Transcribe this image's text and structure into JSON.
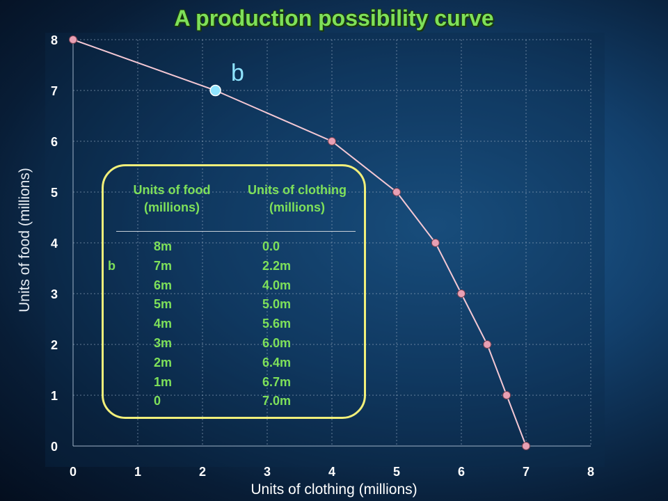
{
  "title": "A production possibility curve",
  "point_label": "b",
  "table": {
    "headers": {
      "food": [
        "Units of food",
        "(millions)"
      ],
      "clothing": [
        "Units of clothing",
        "(millions)"
      ]
    },
    "rows": [
      {
        "label": "",
        "food": "8m",
        "clothing": "0.0"
      },
      {
        "label": "b",
        "food": "7m",
        "clothing": "2.2m"
      },
      {
        "label": "",
        "food": "6m",
        "clothing": "4.0m"
      },
      {
        "label": "",
        "food": "5m",
        "clothing": "5.0m"
      },
      {
        "label": "",
        "food": "4m",
        "clothing": "5.6m"
      },
      {
        "label": "",
        "food": "3m",
        "clothing": "6.0m"
      },
      {
        "label": "",
        "food": "2m",
        "clothing": "6.4m"
      },
      {
        "label": "",
        "food": "1m",
        "clothing": "6.7m"
      },
      {
        "label": "",
        "food": "0",
        "clothing": "7.0m"
      }
    ]
  },
  "chart_data": {
    "type": "line",
    "title": "A production possibility curve",
    "xlabel": "Units of clothing (millions)",
    "ylabel": "Units of food (millions)",
    "xlim": [
      0,
      8
    ],
    "ylim": [
      0,
      8
    ],
    "xticks": [
      "0",
      "1",
      "2",
      "3",
      "4",
      "5",
      "6",
      "7",
      "8"
    ],
    "yticks": [
      "0",
      "1",
      "2",
      "3",
      "4",
      "5",
      "6",
      "7",
      "8"
    ],
    "grid": true,
    "series": [
      {
        "x": [
          0,
          2.2,
          4.0,
          5.0,
          5.6,
          6.0,
          6.4,
          6.7,
          7.0
        ],
        "y": [
          8,
          7,
          6,
          5,
          4,
          3,
          2,
          1,
          0
        ]
      }
    ],
    "highlight": {
      "label": "b",
      "x": 2.2,
      "y": 7
    },
    "colors": {
      "curve": "#f4c8d4",
      "marker": "#e8a0b4",
      "highlight": "#8fe4ff",
      "grid": "#8aa0b8",
      "tick": "#ffffff",
      "plot_bg": "#0b2a4a"
    }
  }
}
